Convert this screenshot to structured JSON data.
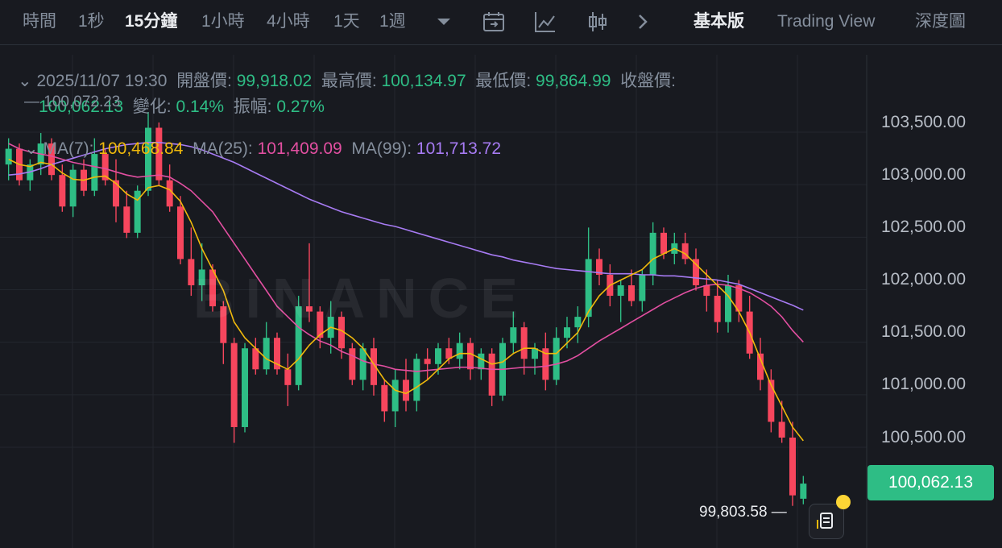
{
  "toolbar": {
    "time_label": "時間",
    "intervals": [
      "1秒",
      "15分鐘",
      "1小時",
      "4小時",
      "1天",
      "1週"
    ],
    "active_interval": "15分鐘",
    "views": [
      "基本版",
      "Trading View",
      "深度圖"
    ],
    "active_view": "基本版",
    "icons": [
      "chevron-down-icon",
      "calendar-icon",
      "line-chart-icon",
      "candlestick-icon",
      "chevron-right-icon"
    ]
  },
  "ohlc": {
    "datetime": "2025/11/07 19:30",
    "open_label": "開盤價:",
    "open": "99,918.02",
    "high_label": "最高價:",
    "high": "100,134.97",
    "low_label": "最低價:",
    "low": "99,864.99",
    "close_label": "收盤價:",
    "close": "100,062.13",
    "change_label": "變化:",
    "change": "0.14%",
    "amplitude_label": "振幅:",
    "amplitude": "0.27%"
  },
  "ma": {
    "ma7_label": "MA(7):",
    "ma7": "100,468.84",
    "ma25_label": "MA(25):",
    "ma25": "101,409.09",
    "ma99_label": "MA(99):",
    "ma99": "101,713.72"
  },
  "price_axis": [
    "103,500.00",
    "103,000.00",
    "102,500.00",
    "102,000.00",
    "101,500.00",
    "101,000.00",
    "100,500.00"
  ],
  "current_price": "100,062.13",
  "visible_high_marker": "100,072.23",
  "visible_low_marker": "99,803.58",
  "watermark": "BINANCE",
  "colors": {
    "up": "#2ebd85",
    "down": "#f6465d",
    "ma7": "#f0b90b",
    "ma25": "#e24fa1",
    "ma99": "#a77bf3"
  },
  "chart_data": {
    "type": "candlestick",
    "y_axis_ticks": [
      103500,
      103000,
      102500,
      102000,
      101500,
      101000,
      100500
    ],
    "ylim": [
      99600,
      103900
    ],
    "candles": [
      {
        "o": 103100,
        "h": 103350,
        "l": 102950,
        "c": 103250
      },
      {
        "o": 103250,
        "h": 103300,
        "l": 102900,
        "c": 102950
      },
      {
        "o": 102950,
        "h": 103150,
        "l": 102850,
        "c": 103100
      },
      {
        "o": 103100,
        "h": 103400,
        "l": 103000,
        "c": 103300
      },
      {
        "o": 103300,
        "h": 103350,
        "l": 102950,
        "c": 103000
      },
      {
        "o": 103000,
        "h": 103100,
        "l": 102650,
        "c": 102700
      },
      {
        "o": 102700,
        "h": 103100,
        "l": 102600,
        "c": 103050
      },
      {
        "o": 103050,
        "h": 103150,
        "l": 102800,
        "c": 102850
      },
      {
        "o": 102850,
        "h": 103350,
        "l": 102800,
        "c": 103200
      },
      {
        "o": 103200,
        "h": 103250,
        "l": 102900,
        "c": 102950
      },
      {
        "o": 102950,
        "h": 103150,
        "l": 102550,
        "c": 102700
      },
      {
        "o": 102700,
        "h": 102850,
        "l": 102400,
        "c": 102450
      },
      {
        "o": 102450,
        "h": 102900,
        "l": 102400,
        "c": 102850
      },
      {
        "o": 102850,
        "h": 103600,
        "l": 102800,
        "c": 103450
      },
      {
        "o": 103450,
        "h": 103500,
        "l": 102900,
        "c": 102950
      },
      {
        "o": 102950,
        "h": 103100,
        "l": 102650,
        "c": 102700
      },
      {
        "o": 102700,
        "h": 102800,
        "l": 102150,
        "c": 102200
      },
      {
        "o": 102200,
        "h": 102500,
        "l": 101850,
        "c": 101950
      },
      {
        "o": 101950,
        "h": 102350,
        "l": 101800,
        "c": 102100
      },
      {
        "o": 102100,
        "h": 102150,
        "l": 101700,
        "c": 101750
      },
      {
        "o": 101750,
        "h": 101800,
        "l": 101200,
        "c": 101400
      },
      {
        "o": 101400,
        "h": 101450,
        "l": 100450,
        "c": 100600
      },
      {
        "o": 100600,
        "h": 101400,
        "l": 100550,
        "c": 101350
      },
      {
        "o": 101350,
        "h": 101450,
        "l": 101100,
        "c": 101150
      },
      {
        "o": 101150,
        "h": 101600,
        "l": 101100,
        "c": 101450
      },
      {
        "o": 101450,
        "h": 101500,
        "l": 101100,
        "c": 101150
      },
      {
        "o": 101150,
        "h": 101300,
        "l": 100800,
        "c": 101000
      },
      {
        "o": 101000,
        "h": 101850,
        "l": 100950,
        "c": 101750
      },
      {
        "o": 101750,
        "h": 102350,
        "l": 101600,
        "c": 101700
      },
      {
        "o": 101700,
        "h": 101750,
        "l": 101350,
        "c": 101450
      },
      {
        "o": 101450,
        "h": 101800,
        "l": 101300,
        "c": 101650
      },
      {
        "o": 101650,
        "h": 101700,
        "l": 101250,
        "c": 101350
      },
      {
        "o": 101350,
        "h": 101400,
        "l": 101000,
        "c": 101050
      },
      {
        "o": 101050,
        "h": 101400,
        "l": 100950,
        "c": 101350
      },
      {
        "o": 101350,
        "h": 101450,
        "l": 100900,
        "c": 101000
      },
      {
        "o": 101000,
        "h": 101050,
        "l": 100650,
        "c": 100750
      },
      {
        "o": 100750,
        "h": 101150,
        "l": 100600,
        "c": 101050
      },
      {
        "o": 101050,
        "h": 101250,
        "l": 100750,
        "c": 100850
      },
      {
        "o": 100850,
        "h": 101300,
        "l": 100750,
        "c": 101250
      },
      {
        "o": 101250,
        "h": 101350,
        "l": 101050,
        "c": 101200
      },
      {
        "o": 101200,
        "h": 101400,
        "l": 101100,
        "c": 101350
      },
      {
        "o": 101350,
        "h": 101450,
        "l": 101200,
        "c": 101250
      },
      {
        "o": 101250,
        "h": 101500,
        "l": 101150,
        "c": 101400
      },
      {
        "o": 101400,
        "h": 101450,
        "l": 101050,
        "c": 101150
      },
      {
        "o": 101150,
        "h": 101350,
        "l": 101050,
        "c": 101300
      },
      {
        "o": 101300,
        "h": 101350,
        "l": 100800,
        "c": 100900
      },
      {
        "o": 100900,
        "h": 101450,
        "l": 100850,
        "c": 101400
      },
      {
        "o": 101400,
        "h": 101700,
        "l": 101300,
        "c": 101550
      },
      {
        "o": 101550,
        "h": 101600,
        "l": 101100,
        "c": 101250
      },
      {
        "o": 101250,
        "h": 101400,
        "l": 101100,
        "c": 101350
      },
      {
        "o": 101350,
        "h": 101500,
        "l": 100950,
        "c": 101050
      },
      {
        "o": 101050,
        "h": 101550,
        "l": 101000,
        "c": 101450
      },
      {
        "o": 101450,
        "h": 101650,
        "l": 101350,
        "c": 101550
      },
      {
        "o": 101550,
        "h": 101750,
        "l": 101400,
        "c": 101650
      },
      {
        "o": 101650,
        "h": 102500,
        "l": 101550,
        "c": 102200
      },
      {
        "o": 102200,
        "h": 102300,
        "l": 101950,
        "c": 102050
      },
      {
        "o": 102050,
        "h": 102150,
        "l": 101750,
        "c": 101850
      },
      {
        "o": 101850,
        "h": 102000,
        "l": 101600,
        "c": 101950
      },
      {
        "o": 101950,
        "h": 102100,
        "l": 101750,
        "c": 101800
      },
      {
        "o": 101800,
        "h": 102100,
        "l": 101700,
        "c": 102050
      },
      {
        "o": 102050,
        "h": 102550,
        "l": 101950,
        "c": 102450
      },
      {
        "o": 102450,
        "h": 102500,
        "l": 102200,
        "c": 102250
      },
      {
        "o": 102250,
        "h": 102450,
        "l": 102150,
        "c": 102350
      },
      {
        "o": 102350,
        "h": 102450,
        "l": 102150,
        "c": 102200
      },
      {
        "o": 102200,
        "h": 102300,
        "l": 101900,
        "c": 101950
      },
      {
        "o": 101950,
        "h": 102100,
        "l": 101700,
        "c": 101850
      },
      {
        "o": 101850,
        "h": 102000,
        "l": 101500,
        "c": 101600
      },
      {
        "o": 101600,
        "h": 102050,
        "l": 101500,
        "c": 101950
      },
      {
        "o": 101950,
        "h": 102000,
        "l": 101600,
        "c": 101700
      },
      {
        "o": 101700,
        "h": 101850,
        "l": 101250,
        "c": 101300
      },
      {
        "o": 101300,
        "h": 101450,
        "l": 100950,
        "c": 101050
      },
      {
        "o": 101050,
        "h": 101150,
        "l": 100550,
        "c": 100650
      },
      {
        "o": 100650,
        "h": 100850,
        "l": 100450,
        "c": 100500
      },
      {
        "o": 100500,
        "h": 100650,
        "l": 99850,
        "c": 99950
      },
      {
        "o": 99918.02,
        "h": 100134.97,
        "l": 99864.99,
        "c": 100062.13
      }
    ],
    "ma7_points": [
      103150,
      103100,
      103080,
      103120,
      103100,
      103020,
      102960,
      102950,
      102980,
      102990,
      102920,
      102820,
      102760,
      102880,
      102900,
      102860,
      102750,
      102550,
      102300,
      102100,
      101900,
      101600,
      101450,
      101350,
      101250,
      101200,
      101150,
      101250,
      101380,
      101480,
      101550,
      101520,
      101450,
      101350,
      101200,
      101050,
      100950,
      100920,
      100980,
      101050,
      101150,
      101250,
      101300,
      101300,
      101250,
      101200,
      101220,
      101300,
      101350,
      101350,
      101300,
      101300,
      101400,
      101500,
      101700,
      101850,
      101950,
      102000,
      102050,
      102100,
      102200,
      102250,
      102300,
      102250,
      102150,
      102050,
      101950,
      101850,
      101700,
      101500,
      101250,
      101000,
      100800,
      100600,
      100470
    ],
    "ma25_points": [
      103300,
      103250,
      103220,
      103200,
      103180,
      103150,
      103120,
      103100,
      103080,
      103060,
      103030,
      103000,
      102980,
      102990,
      103000,
      102980,
      102920,
      102850,
      102750,
      102650,
      102500,
      102350,
      102200,
      102050,
      101900,
      101750,
      101650,
      101550,
      101480,
      101420,
      101380,
      101320,
      101280,
      101230,
      101200,
      101180,
      101150,
      101140,
      101130,
      101140,
      101150,
      101160,
      101170,
      101170,
      101160,
      101150,
      101150,
      101160,
      101170,
      101170,
      101180,
      101200,
      101230,
      101280,
      101350,
      101420,
      101480,
      101540,
      101600,
      101660,
      101720,
      101780,
      101830,
      101880,
      101920,
      101950,
      101960,
      101950,
      101920,
      101880,
      101820,
      101750,
      101650,
      101520,
      101410
    ],
    "ma99_points": [
      103000,
      103010,
      103030,
      103060,
      103100,
      103130,
      103160,
      103190,
      103220,
      103250,
      103270,
      103290,
      103300,
      103310,
      103310,
      103300,
      103290,
      103270,
      103240,
      103200,
      103160,
      103120,
      103070,
      103020,
      102970,
      102920,
      102870,
      102820,
      102770,
      102730,
      102690,
      102650,
      102620,
      102590,
      102560,
      102530,
      102510,
      102480,
      102450,
      102420,
      102390,
      102360,
      102330,
      102300,
      102270,
      102240,
      102220,
      102190,
      102170,
      102150,
      102130,
      102110,
      102100,
      102090,
      102080,
      102070,
      102060,
      102060,
      102060,
      102050,
      102050,
      102040,
      102040,
      102030,
      102020,
      102010,
      102000,
      101980,
      101960,
      101920,
      101880,
      101840,
      101800,
      101760,
      101714
    ]
  }
}
